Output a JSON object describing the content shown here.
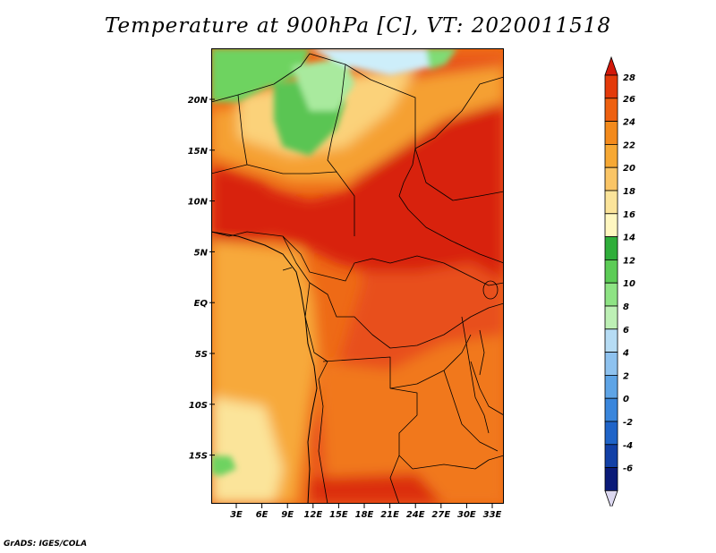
{
  "title": "Temperature at 900hPa [C], VT: 2020011518",
  "footer": "GrADS: IGES/COLA",
  "lat_labels": [
    "20N",
    "15N",
    "10N",
    "5N",
    "EQ",
    "5S",
    "10S",
    "15S"
  ],
  "lon_labels": [
    "3E",
    "6E",
    "9E",
    "12E",
    "15E",
    "18E",
    "21E",
    "24E",
    "27E",
    "30E",
    "33E"
  ],
  "colorbar": {
    "levels": [
      "28",
      "26",
      "24",
      "22",
      "20",
      "18",
      "16",
      "14",
      "12",
      "10",
      "8",
      "6",
      "4",
      "2",
      "0",
      "-2",
      "-4",
      "-6"
    ],
    "colors_top_to_bottom": [
      "#d2180a",
      "#e43a0a",
      "#ee6010",
      "#f38a1c",
      "#f6a834",
      "#fac566",
      "#fbe49a",
      "#fff7c0",
      "#2fae3a",
      "#5ccc56",
      "#8ee384",
      "#bdf0b5",
      "#b6dcf4",
      "#8ec2ef",
      "#5ea4e6",
      "#3a86dc",
      "#1f64c8",
      "#1240a6",
      "#0a1a78",
      "#dcd8f0"
    ]
  }
}
